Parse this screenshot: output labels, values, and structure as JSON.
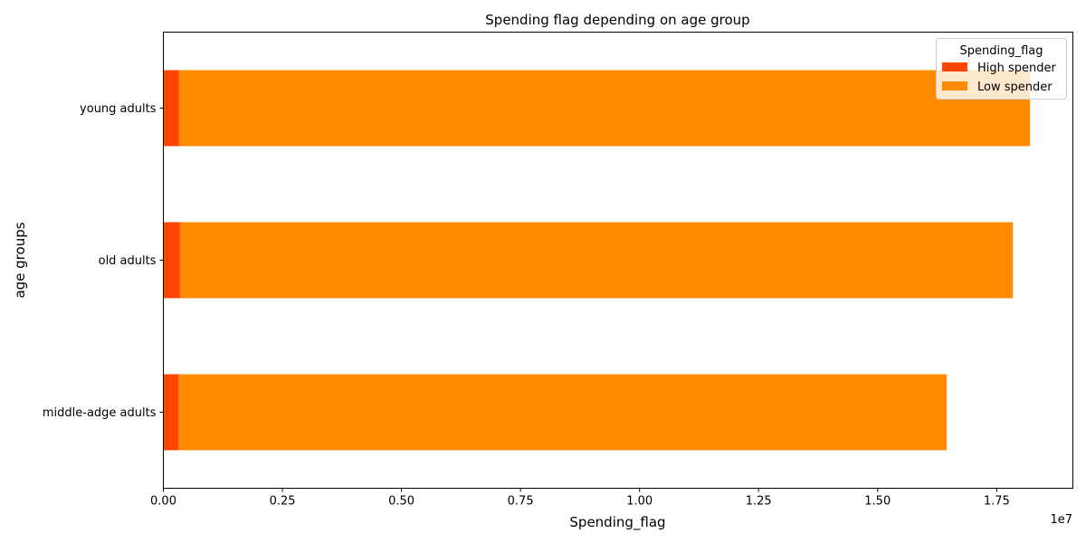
{
  "chart_data": {
    "type": "bar",
    "orientation": "horizontal",
    "stacked": true,
    "title": "Spending flag depending on age group",
    "xlabel": "Spending_flag",
    "ylabel": "age groups",
    "x_offset_label": "1e7",
    "xlim": [
      0,
      19100000
    ],
    "xticks": [
      0,
      2500000,
      5000000,
      7500000,
      10000000,
      12500000,
      15000000,
      17500000
    ],
    "xtick_labels": [
      "0.00",
      "0.25",
      "0.50",
      "0.75",
      "1.00",
      "1.25",
      "1.50",
      "1.75"
    ],
    "categories": [
      "middle-adge adults",
      "old adults",
      "young adults"
    ],
    "series": [
      {
        "name": "High spender",
        "color": "#ff4500",
        "values": [
          320000,
          350000,
          330000
        ]
      },
      {
        "name": "Low spender",
        "color": "#ff8c00",
        "values": [
          16130000,
          17490000,
          17870000
        ]
      }
    ],
    "legend": {
      "title": "Spending_flag",
      "position": "top-right"
    },
    "grid": false
  }
}
